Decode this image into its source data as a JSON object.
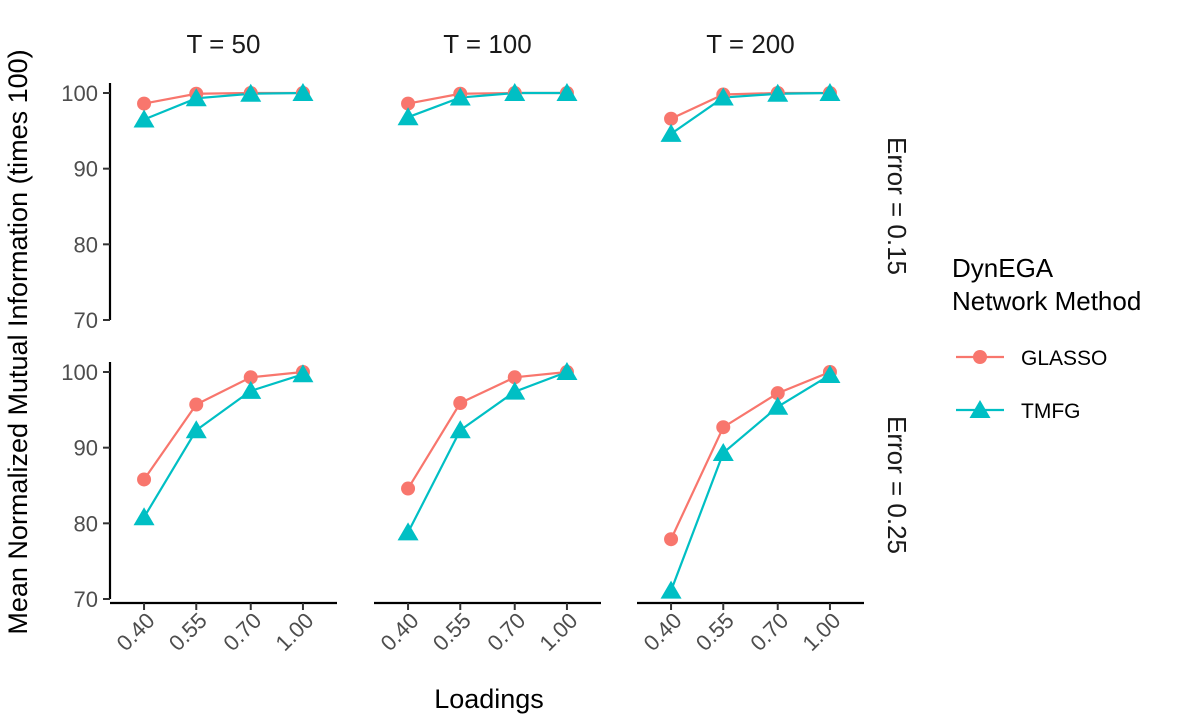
{
  "chart_data": {
    "type": "line",
    "ylabel": "Mean Normalized Mutual Information (times 100)",
    "xlabel": "Loadings",
    "categories": [
      "0.40",
      "0.55",
      "0.70",
      "1.00"
    ],
    "ylim": [
      70,
      100
    ],
    "yticks": [
      70,
      80,
      90,
      100
    ],
    "col_facets": [
      "T = 50",
      "T = 100",
      "T = 200"
    ],
    "row_facets": [
      "Error = 0.15",
      "Error = 0.25"
    ],
    "legend": {
      "title_line1": "DynEGA",
      "title_line2": "Network Method",
      "position": "right"
    },
    "grid": false,
    "series_styles": [
      {
        "name": "GLASSO",
        "color": "#F8766D",
        "marker": "circle"
      },
      {
        "name": "TMFG",
        "color": "#00BFC4",
        "marker": "triangle"
      }
    ],
    "panels": [
      {
        "row": 0,
        "col": 0,
        "series": [
          {
            "name": "GLASSO",
            "values": [
              98.6,
              99.9,
              100.0,
              100.0
            ]
          },
          {
            "name": "TMFG",
            "values": [
              96.5,
              99.3,
              99.9,
              100.0
            ]
          }
        ]
      },
      {
        "row": 0,
        "col": 1,
        "series": [
          {
            "name": "GLASSO",
            "values": [
              98.6,
              99.9,
              100.0,
              100.0
            ]
          },
          {
            "name": "TMFG",
            "values": [
              96.8,
              99.4,
              100.0,
              100.0
            ]
          }
        ]
      },
      {
        "row": 0,
        "col": 2,
        "series": [
          {
            "name": "GLASSO",
            "values": [
              96.6,
              99.8,
              100.0,
              100.0
            ]
          },
          {
            "name": "TMFG",
            "values": [
              94.6,
              99.4,
              99.9,
              100.0
            ]
          }
        ]
      },
      {
        "row": 1,
        "col": 0,
        "series": [
          {
            "name": "GLASSO",
            "values": [
              85.8,
              95.7,
              99.3,
              100.0
            ]
          },
          {
            "name": "TMFG",
            "values": [
              80.8,
              92.3,
              97.5,
              99.7
            ]
          }
        ]
      },
      {
        "row": 1,
        "col": 1,
        "series": [
          {
            "name": "GLASSO",
            "values": [
              84.6,
              95.9,
              99.3,
              100.0
            ]
          },
          {
            "name": "TMFG",
            "values": [
              78.8,
              92.3,
              97.4,
              100.0
            ]
          }
        ]
      },
      {
        "row": 1,
        "col": 2,
        "series": [
          {
            "name": "GLASSO",
            "values": [
              77.9,
              92.7,
              97.2,
              100.0
            ]
          },
          {
            "name": "TMFG",
            "values": [
              71.1,
              89.3,
              95.4,
              99.6
            ]
          }
        ]
      }
    ]
  }
}
